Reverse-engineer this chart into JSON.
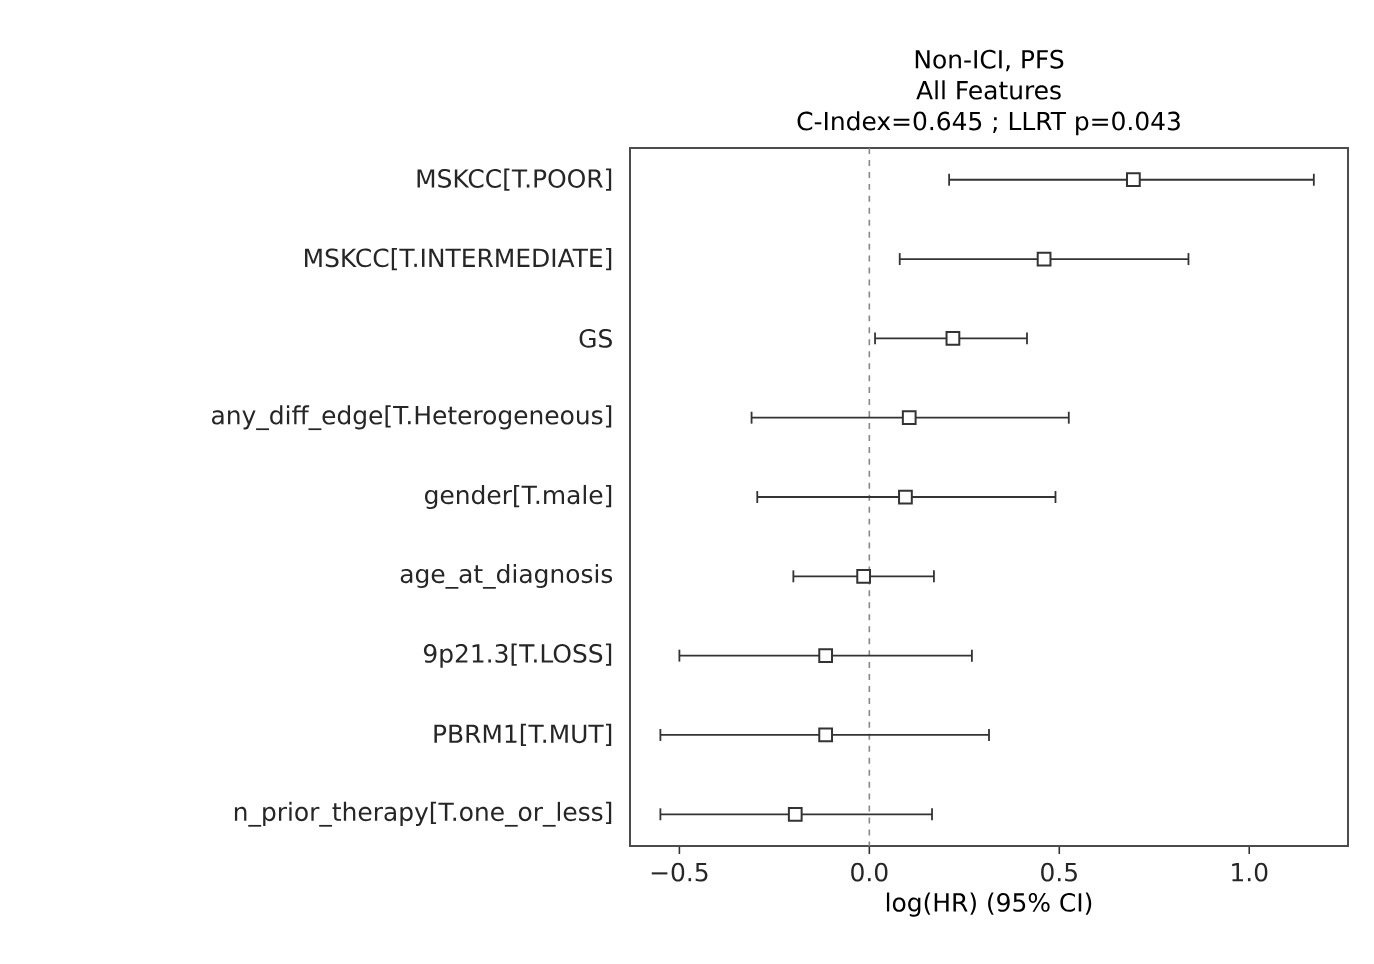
{
  "chart_data": {
    "type": "scatter",
    "orientation": "horizontal",
    "title": "Non-ICI, PFS",
    "subtitle": "All Features",
    "annotations": [
      "C-Index=0.645 ; LLRT p=0.043"
    ],
    "xlabel": "log(HR) (95% CI)",
    "categories": [
      "MSKCC[T.POOR]",
      "MSKCC[T.INTERMEDIATE]",
      "GS",
      "any_diff_edge[T.Heterogeneous]",
      "gender[T.male]",
      "age_at_diagnosis",
      "9p21.3[T.LOSS]",
      "PBRM1[T.MUT]",
      "n_prior_therapy[T.one_or_less]"
    ],
    "values": [
      0.695,
      0.46,
      0.22,
      0.105,
      0.095,
      -0.015,
      -0.115,
      -0.115,
      -0.195
    ],
    "errors": [
      [
        0.21,
        1.17
      ],
      [
        0.08,
        0.84
      ],
      [
        0.015,
        0.415
      ],
      [
        -0.31,
        0.525
      ],
      [
        -0.295,
        0.49
      ],
      [
        -0.2,
        0.17
      ],
      [
        -0.5,
        0.27
      ],
      [
        -0.55,
        0.315
      ],
      [
        -0.55,
        0.165
      ]
    ],
    "color": "#333333",
    "marker": "square",
    "xlim": [
      -0.63,
      1.26
    ],
    "xticks": [
      {
        "value": -0.5,
        "label": "−0.5"
      },
      {
        "value": 0,
        "label": "0.0"
      },
      {
        "value": 0.5,
        "label": "0.5"
      },
      {
        "value": 1,
        "label": "1.0"
      }
    ],
    "ref_lines": [
      {
        "axis": "x",
        "value": 0,
        "color": "#888888",
        "line_style": "dashed"
      }
    ]
  }
}
